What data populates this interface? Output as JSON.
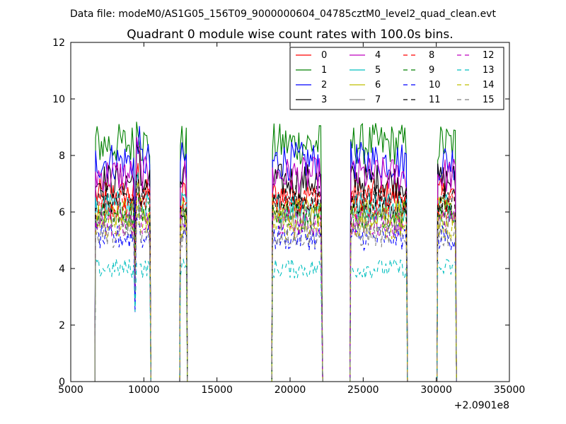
{
  "chart_data": {
    "type": "line",
    "suptitle": "Data file: modeM0/AS1G05_156T09_9000000604_04785cztM0_level2_quad_clean.evt",
    "title": "Quadrant 0 module wise count rates with 100.0s bins.",
    "xlabel": "",
    "ylabel": "",
    "x_offset_label": "+2.0901e8",
    "xlim": [
      5000,
      35000
    ],
    "ylim": [
      0,
      12
    ],
    "x_ticks": [
      5000,
      10000,
      15000,
      20000,
      25000,
      30000,
      35000
    ],
    "y_ticks": [
      0,
      2,
      4,
      6,
      8,
      10,
      12
    ],
    "legend": {
      "position": "top-right",
      "columns": 4
    },
    "segments": [
      {
        "start": 6700,
        "end": 10400
      },
      {
        "start": 12500,
        "end": 12900
      },
      {
        "start": 18800,
        "end": 22150
      },
      {
        "start": 24150,
        "end": 27950
      },
      {
        "start": 30100,
        "end": 31300
      }
    ],
    "bin_width": 100,
    "series": [
      {
        "name": "0",
        "color": "#ff0000",
        "style": "solid",
        "level": 6.6
      },
      {
        "name": "1",
        "color": "#008000",
        "style": "solid",
        "level": 8.4
      },
      {
        "name": "2",
        "color": "#0000ff",
        "style": "solid",
        "level": 7.8
      },
      {
        "name": "3",
        "color": "#000000",
        "style": "solid",
        "level": 7.1
      },
      {
        "name": "4",
        "color": "#bf00bf",
        "style": "solid",
        "level": 7.3
      },
      {
        "name": "5",
        "color": "#00bfbf",
        "style": "solid",
        "level": 6.2
      },
      {
        "name": "6",
        "color": "#bfbf00",
        "style": "solid",
        "level": 6.0
      },
      {
        "name": "7",
        "color": "#808080",
        "style": "solid",
        "level": 5.8
      },
      {
        "name": "8",
        "color": "#ff0000",
        "style": "dashed",
        "level": 6.3
      },
      {
        "name": "9",
        "color": "#008000",
        "style": "dashed",
        "level": 5.9
      },
      {
        "name": "10",
        "color": "#0000ff",
        "style": "dashed",
        "level": 5.1
      },
      {
        "name": "11",
        "color": "#000000",
        "style": "dashed",
        "level": 6.4
      },
      {
        "name": "12",
        "color": "#bf00bf",
        "style": "dashed",
        "level": 5.6
      },
      {
        "name": "13",
        "color": "#00bfbf",
        "style": "dashed",
        "level": 4.0
      },
      {
        "name": "14",
        "color": "#bfbf00",
        "style": "dashed",
        "level": 5.5
      },
      {
        "name": "15",
        "color": "#808080",
        "style": "dashed",
        "level": 5.2
      }
    ]
  }
}
